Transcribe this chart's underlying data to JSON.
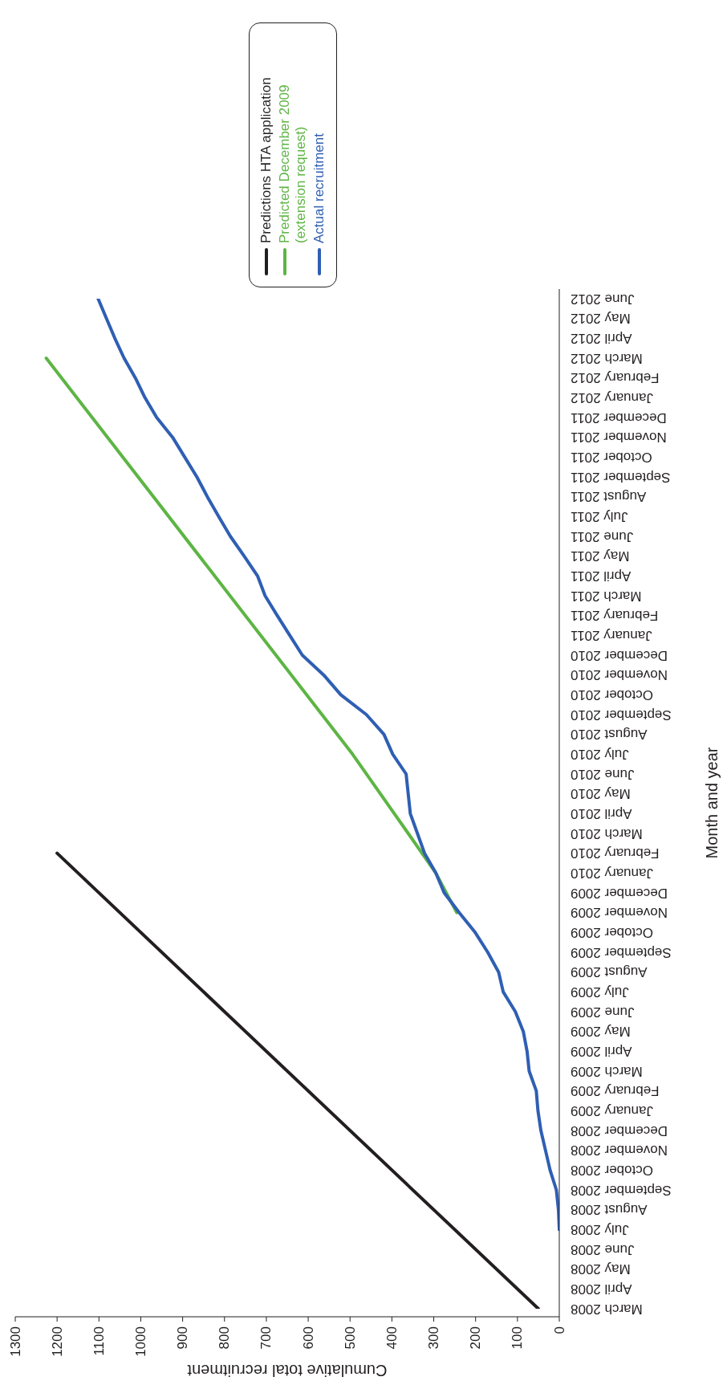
{
  "chart_data": {
    "type": "line",
    "orientation": "horizontal",
    "xlabel": "Cumulative total recruitment",
    "ylabel": "Month and year",
    "categories": [
      "June 2012",
      "May 2012",
      "April 2012",
      "March 2012",
      "February 2012",
      "January 2012",
      "December 2011",
      "November 2011",
      "October 2011",
      "September 2011",
      "August 2011",
      "July 2011",
      "June 2011",
      "May 2011",
      "April 2011",
      "March 2011",
      "February 2011",
      "January 2011",
      "December 2010",
      "November 2010",
      "October 2010",
      "September 2010",
      "August 2010",
      "July 2010",
      "June 2010",
      "May 2010",
      "April 2010",
      "March 2010",
      "February 2010",
      "January 2010",
      "December 2009",
      "November 2009",
      "October 2009",
      "September 2009",
      "August 2009",
      "July 2009",
      "June 2009",
      "May 2009",
      "April 2009",
      "March 2009",
      "February 2009",
      "January 2009",
      "December 2008",
      "November 2008",
      "October 2008",
      "September 2008",
      "August 2008",
      "July 2008",
      "June 2008",
      "May 2008",
      "April 2008",
      "March 2008"
    ],
    "series": [
      {
        "name": "Predictions HTA application",
        "color": "#231f20",
        "x": [
          "February 2010",
          "March 2008"
        ],
        "values": [
          1200,
          50
        ]
      },
      {
        "name": "Predicted December 2009 (extension request)",
        "color": "#5db544",
        "x": [
          "March 2012",
          "July 2010",
          "March 2010",
          "January 2010",
          "November 2009"
        ],
        "values": [
          1226,
          494,
          361,
          295,
          245
        ]
      },
      {
        "name": "Actual recruitment",
        "color": "#2f5fb3",
        "values": [
          1102,
          1082,
          1062,
          1040,
          1013,
          990,
          962,
          924,
          895,
          866,
          841,
          814,
          786,
          753,
          721,
          703,
          674,
          644,
          614,
          563,
          522,
          461,
          419,
          398,
          366,
          361,
          356,
          339,
          322,
          295,
          275,
          239,
          201,
          171,
          145,
          134,
          105,
          86,
          77,
          72,
          55,
          51,
          44,
          33,
          22,
          7,
          2,
          0,
          null,
          null,
          null,
          null
        ]
      }
    ],
    "xlim": [
      1300,
      0
    ],
    "xticks": [
      0,
      100,
      200,
      300,
      400,
      500,
      600,
      700,
      800,
      900,
      1000,
      1100,
      1200,
      1300
    ],
    "grid": false,
    "legend": "top right",
    "marker": "none",
    "line_style": "solid"
  }
}
